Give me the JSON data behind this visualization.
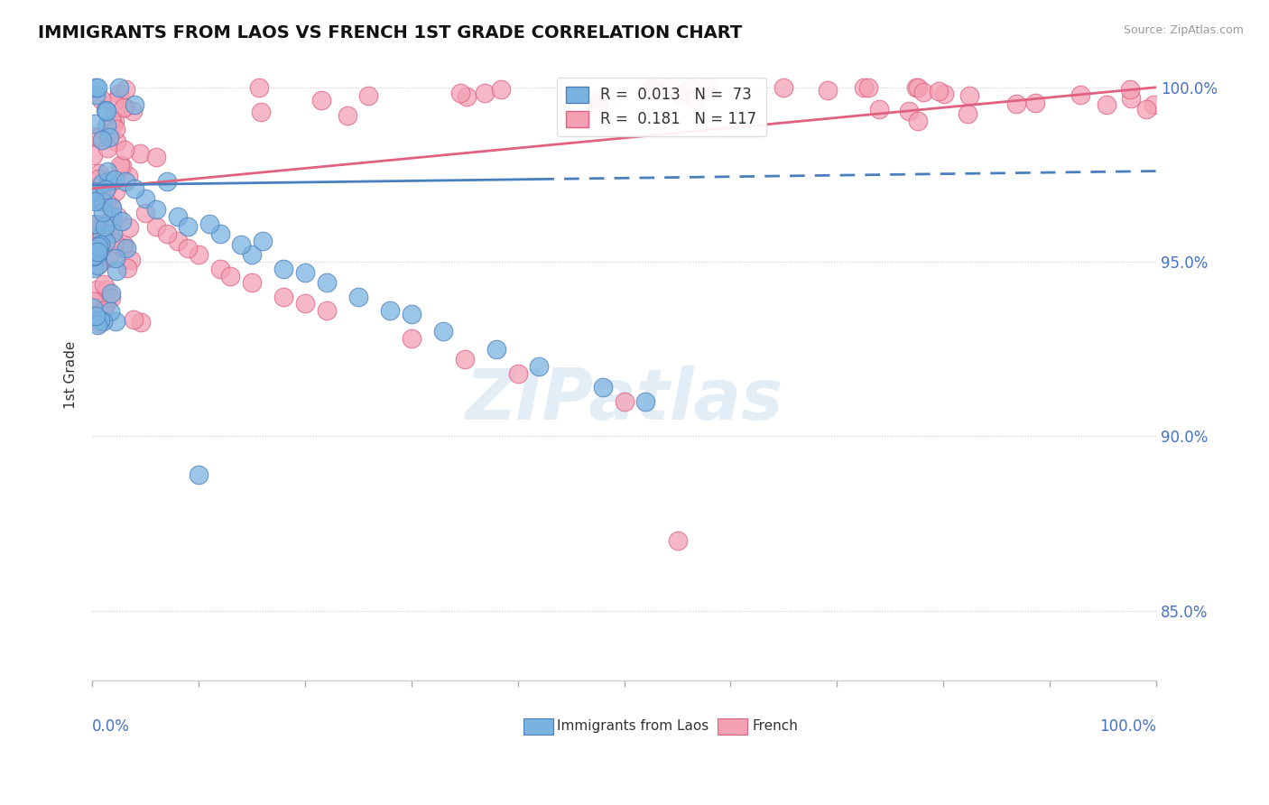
{
  "title": "IMMIGRANTS FROM LAOS VS FRENCH 1ST GRADE CORRELATION CHART",
  "source": "Source: ZipAtlas.com",
  "ylabel": "1st Grade",
  "ytick_labels": [
    "85.0%",
    "90.0%",
    "95.0%",
    "100.0%"
  ],
  "ytick_values": [
    0.85,
    0.9,
    0.95,
    1.0
  ],
  "legend_blue": "R =  0.013   N =  73",
  "legend_pink": "R =  0.181   N = 117",
  "blue_color": "#7ab3e0",
  "pink_color": "#f4a0b5",
  "blue_edge_color": "#4a7fbf",
  "pink_edge_color": "#e06080",
  "blue_line_color": "#4a7fbf",
  "pink_line_color": "#e06080",
  "watermark": "ZIPatlas",
  "ymin": 0.83,
  "ymax": 1.005,
  "xmin": 0.0,
  "xmax": 1.0
}
